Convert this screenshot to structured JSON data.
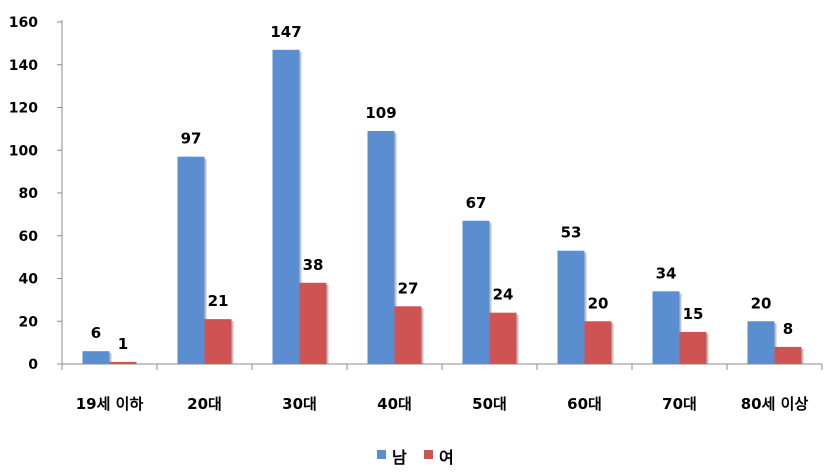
{
  "chart_data": {
    "type": "bar",
    "title": "",
    "xlabel": "",
    "ylabel": "",
    "ylim": [
      0,
      160
    ],
    "yticks": [
      0,
      20,
      40,
      60,
      80,
      100,
      120,
      140,
      160
    ],
    "grid": false,
    "legend_position": "bottom",
    "categories": [
      "19세 이하",
      "20대",
      "30대",
      "40대",
      "50대",
      "60대",
      "70대",
      "80세 이상"
    ],
    "series": [
      {
        "name": "남",
        "color": "#5B8ED0",
        "values": [
          6,
          97,
          147,
          109,
          67,
          53,
          34,
          20
        ]
      },
      {
        "name": "여",
        "color": "#CF5352",
        "values": [
          1,
          21,
          38,
          27,
          24,
          20,
          15,
          8
        ]
      }
    ]
  }
}
